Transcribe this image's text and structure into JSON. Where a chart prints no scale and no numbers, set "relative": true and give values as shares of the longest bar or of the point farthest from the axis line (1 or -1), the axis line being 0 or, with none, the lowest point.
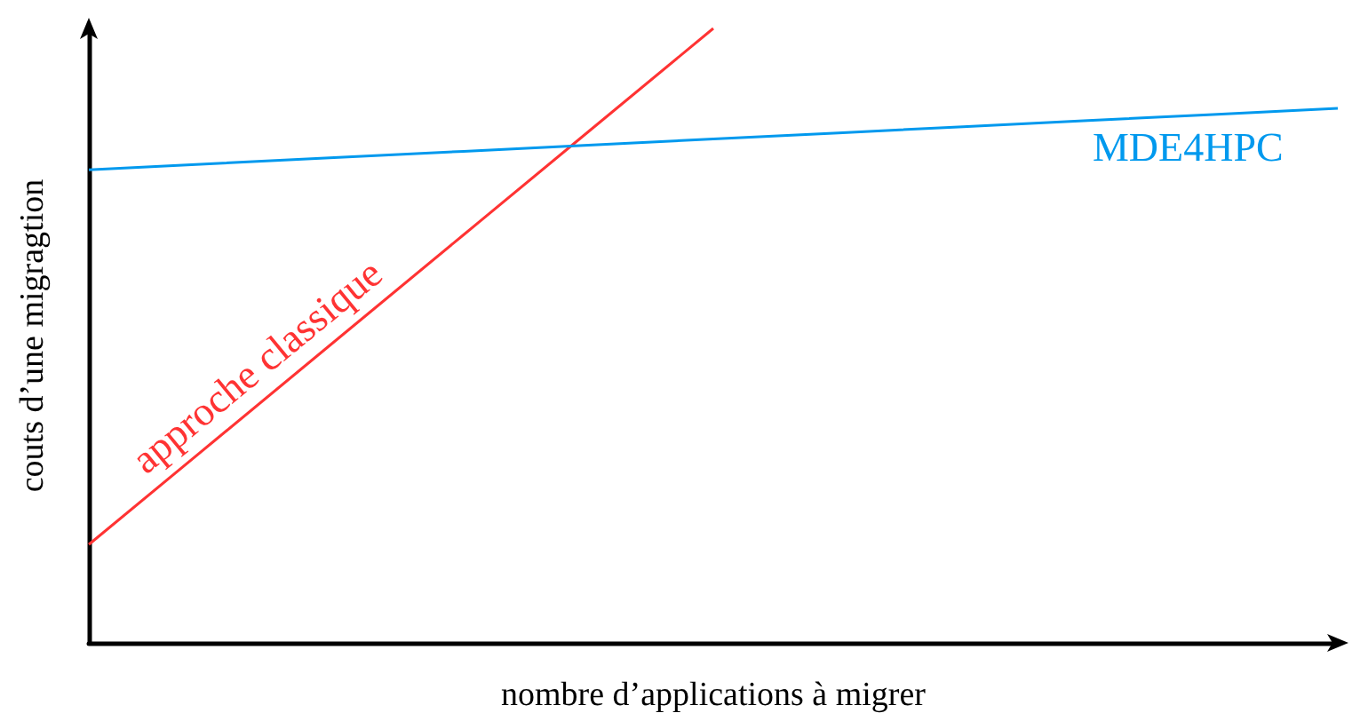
{
  "chart_data": {
    "type": "line",
    "xlabel": "nombre d’applications à migrer",
    "ylabel": "couts d’une migragtion",
    "relative": true,
    "grid": false,
    "legend": false,
    "marker": "none",
    "line_style": "solid",
    "categories": [
      null,
      null,
      null,
      null,
      null,
      null,
      null,
      null,
      null,
      null,
      null
    ],
    "series": [
      {
        "name": "approche classique",
        "color": "#ff3333",
        "values": [
          0.16,
          0.328,
          0.496,
          0.664,
          0.832,
          1.0,
          null,
          null,
          null,
          null,
          null
        ]
      },
      {
        "name": "MDE4HPC",
        "color": "#0099ee",
        "values": [
          0.77,
          0.78,
          0.79,
          0.8,
          0.81,
          0.82,
          0.83,
          0.84,
          0.85,
          0.86,
          0.87
        ]
      }
    ]
  }
}
